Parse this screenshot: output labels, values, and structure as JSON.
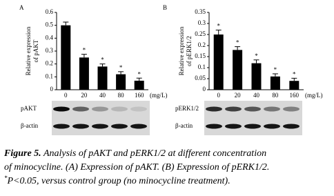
{
  "chart_data": [
    {
      "type": "bar",
      "panel": "A",
      "y_label": [
        "Relative expression",
        "of pAKT"
      ],
      "x_unit": "(mg/L)",
      "categories": [
        "0",
        "20",
        "40",
        "80",
        "160"
      ],
      "values": [
        0.5,
        0.25,
        0.18,
        0.12,
        0.07
      ],
      "errors": [
        0.025,
        0.025,
        0.02,
        0.02,
        0.02
      ],
      "significance": [
        null,
        "*",
        "*",
        "*",
        "*"
      ],
      "color": "#000000",
      "ylim": [
        0,
        0.6
      ],
      "yticks": [
        0,
        0.1,
        0.2,
        0.3,
        0.4,
        0.5,
        0.6
      ],
      "blot_labels": [
        "pAKT",
        "β-actin"
      ]
    },
    {
      "type": "bar",
      "panel": "B",
      "y_label": [
        "Relative expression",
        "of pERK1/2"
      ],
      "x_unit": "(mg/L)",
      "categories": [
        "0",
        "20",
        "40",
        "80",
        "160"
      ],
      "values": [
        0.25,
        0.18,
        0.12,
        0.06,
        0.04
      ],
      "errors": [
        0.02,
        0.015,
        0.015,
        0.012,
        0.012
      ],
      "significance": [
        "*",
        "*",
        "*",
        "*",
        "*"
      ],
      "color": "#000000",
      "ylim": [
        0,
        0.35
      ],
      "yticks": [
        0,
        0.05,
        0.1,
        0.15,
        0.2,
        0.25,
        0.3,
        0.35
      ],
      "blot_labels": [
        "pERK1/2",
        "β-actin"
      ]
    }
  ],
  "caption": {
    "label": "Figure 5.",
    "line1": "Analysis of pAKT and pERK1/2 at different concentration",
    "line2": "of minocycline. (A) Expression of pAKT. (B) Expression of pERK1/2.",
    "sup": "*",
    "line3": "P<0.05, versus control group (no minocycline treatment)."
  }
}
